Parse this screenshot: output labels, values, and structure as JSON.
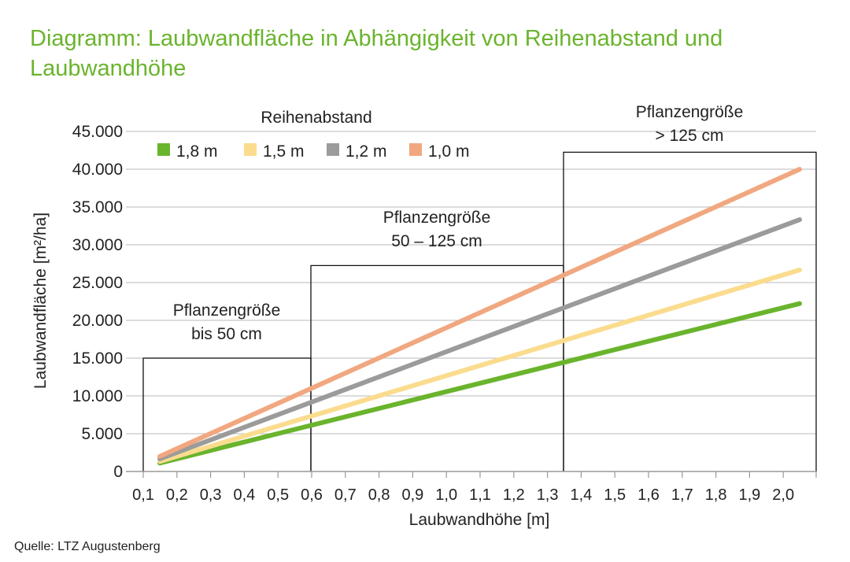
{
  "chart_data": {
    "type": "line",
    "title": "Diagramm: Laubwandfläche in Abhängigkeit von Reihenabstand und Laubwandhöhe",
    "xlabel": "Laubwandhöhe [m]",
    "ylabel": "Laubwandfläche [m²/ha]",
    "legend_title": "Reihenabstand",
    "legend_position": "top-left",
    "x_ticks": [
      "0,1",
      "0,2",
      "0,3",
      "0,4",
      "0,5",
      "0,6",
      "0,7",
      "0,8",
      "0,9",
      "1,0",
      "1,1",
      "1,2",
      "1,3",
      "1,4",
      "1,5",
      "1,6",
      "1,7",
      "1,8",
      "1,9",
      "2,0"
    ],
    "y_ticks": [
      "0",
      "5.000",
      "10.000",
      "15.000",
      "20.000",
      "25.000",
      "30.000",
      "35.000",
      "40.000",
      "45.000"
    ],
    "xlim": [
      0.1,
      2.0
    ],
    "ylim": [
      0,
      45000
    ],
    "grid": "horizontal",
    "x": [
      0.1,
      2.0
    ],
    "series": [
      {
        "name": "1,8 m",
        "color": "#6ab42d",
        "values": [
          1111,
          22222
        ]
      },
      {
        "name": "1,5 m",
        "color": "#fbdc8e",
        "values": [
          1333,
          26667
        ]
      },
      {
        "name": "1,2 m",
        "color": "#9b9b9b",
        "values": [
          1667,
          33333
        ]
      },
      {
        "name": "1,0 m",
        "color": "#f1a77f",
        "values": [
          2000,
          40000
        ]
      }
    ],
    "regions": [
      {
        "label_line1": "Pflanzengröße",
        "label_line2": "bis 50 cm",
        "x_from": 0.1,
        "x_to": 0.6,
        "y_top": 15000
      },
      {
        "label_line1": "Pflanzengröße",
        "label_line2": "50 – 125 cm",
        "x_from": 0.6,
        "x_to": 1.3,
        "y_top": 27250
      },
      {
        "label_line1": "Pflanzengröße",
        "label_line2": "> 125 cm",
        "x_from": 1.3,
        "x_to": 2.0,
        "y_top": 42250
      }
    ]
  },
  "source": "Quelle: LTZ Augustenberg"
}
